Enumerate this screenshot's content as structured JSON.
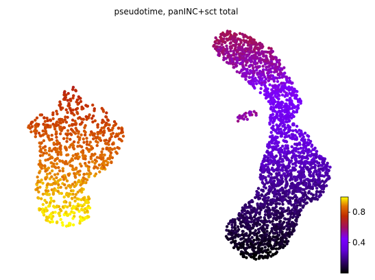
{
  "chart_data": {
    "type": "scatter",
    "title": "pseudotime, panINC+sct total",
    "xlabel": "",
    "ylabel": "",
    "grid": false,
    "axes_visible": false,
    "colormap": "gnuplot",
    "colorbar": {
      "range": [
        0.0,
        1.0
      ],
      "ticks": [
        0.4,
        0.8
      ],
      "tick_labels": [
        "0.4",
        "0.8"
      ],
      "placement": "bottom-right"
    },
    "clusters": [
      {
        "name": "",
        "description_visual": "left cluster, yellow to orange",
        "points_estimate": 800,
        "polygon": [
          [
            35,
            185
          ],
          [
            50,
            170
          ],
          [
            70,
            163
          ],
          [
            85,
            155
          ],
          [
            92,
            128
          ],
          [
            105,
            123
          ],
          [
            118,
            140
          ],
          [
            135,
            148
          ],
          [
            155,
            162
          ],
          [
            175,
            180
          ],
          [
            182,
            195
          ],
          [
            175,
            215
          ],
          [
            165,
            235
          ],
          [
            150,
            250
          ],
          [
            128,
            262
          ],
          [
            130,
            285
          ],
          [
            132,
            305
          ],
          [
            130,
            320
          ],
          [
            110,
            330
          ],
          [
            88,
            332
          ],
          [
            68,
            322
          ],
          [
            55,
            305
          ],
          [
            52,
            275
          ],
          [
            55,
            255
          ],
          [
            58,
            225
          ],
          [
            55,
            205
          ],
          [
            45,
            192
          ]
        ],
        "value_range": [
          0.72,
          1.0
        ],
        "value_gradient": "increases downward"
      },
      {
        "name": "",
        "description_visual": "right cluster, dark purple to orange-red",
        "points_estimate": 2500,
        "polygon": [
          [
            312,
            55
          ],
          [
            330,
            45
          ],
          [
            352,
            48
          ],
          [
            372,
            58
          ],
          [
            395,
            70
          ],
          [
            410,
            90
          ],
          [
            420,
            110
          ],
          [
            432,
            130
          ],
          [
            440,
            150
          ],
          [
            432,
            165
          ],
          [
            425,
            175
          ],
          [
            440,
            190
          ],
          [
            455,
            200
          ],
          [
            462,
            220
          ],
          [
            475,
            230
          ],
          [
            485,
            245
          ],
          [
            478,
            270
          ],
          [
            465,
            290
          ],
          [
            450,
            295
          ],
          [
            438,
            310
          ],
          [
            430,
            335
          ],
          [
            418,
            358
          ],
          [
            400,
            372
          ],
          [
            380,
            380
          ],
          [
            355,
            375
          ],
          [
            340,
            360
          ],
          [
            330,
            345
          ],
          [
            328,
            330
          ],
          [
            340,
            318
          ],
          [
            355,
            300
          ],
          [
            370,
            290
          ],
          [
            378,
            270
          ],
          [
            380,
            245
          ],
          [
            388,
            215
          ],
          [
            395,
            195
          ],
          [
            392,
            175
          ],
          [
            395,
            155
          ],
          [
            385,
            140
          ],
          [
            370,
            128
          ],
          [
            352,
            110
          ],
          [
            335,
            95
          ],
          [
            318,
            80
          ],
          [
            310,
            65
          ]
        ],
        "value_range": [
          0.0,
          0.62
        ],
        "value_gradient": "decreases downward"
      },
      {
        "name": "",
        "description_visual": "small isolated group, red",
        "points_estimate": 20,
        "polygon": [
          [
            342,
            175
          ],
          [
            350,
            168
          ],
          [
            360,
            162
          ],
          [
            372,
            162
          ],
          [
            378,
            168
          ],
          [
            370,
            172
          ],
          [
            356,
            175
          ],
          [
            345,
            178
          ]
        ],
        "value_range": [
          0.5,
          0.58
        ]
      }
    ]
  }
}
